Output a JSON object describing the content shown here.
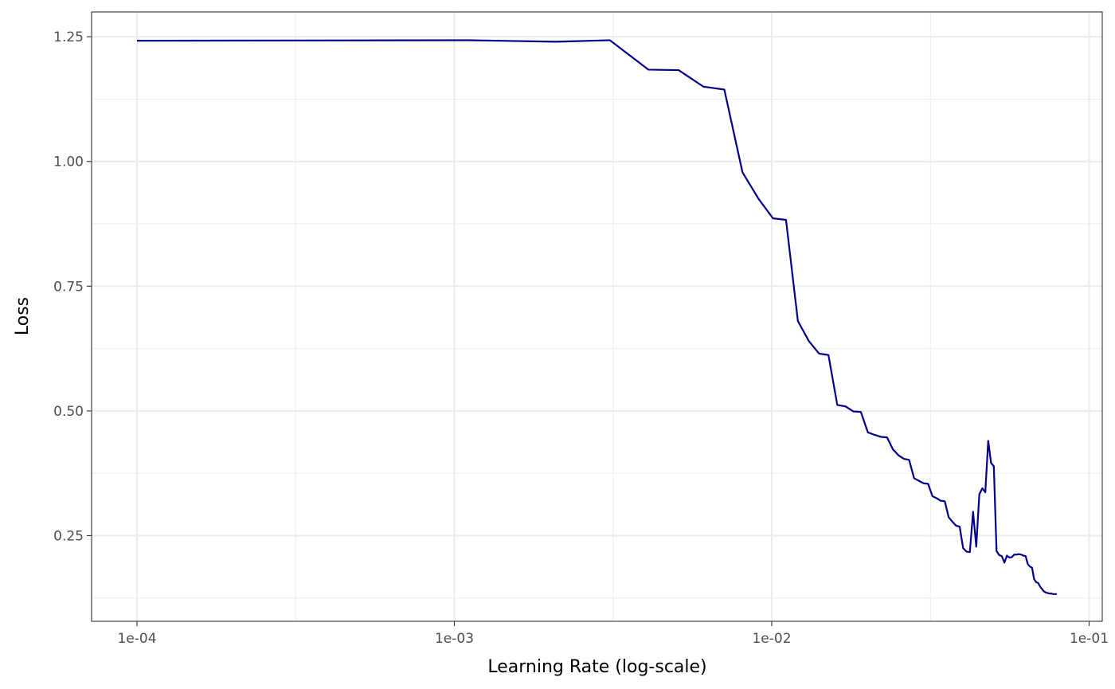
{
  "chart_data": {
    "type": "line",
    "title": "",
    "xlabel": "Learning Rate (log-scale)",
    "ylabel": "Loss",
    "x_scale": "log10",
    "xlim": [
      0.0001,
      0.08
    ],
    "ylim": [
      0.1,
      1.3
    ],
    "x_ticks": [
      {
        "value": 0.0001,
        "label": "1e-04"
      },
      {
        "value": 0.001,
        "label": "1e-03"
      },
      {
        "value": 0.01,
        "label": "1e-02"
      },
      {
        "value": 0.1,
        "label": "1e-01"
      }
    ],
    "y_ticks": [
      {
        "value": 0.25,
        "label": "0.25"
      },
      {
        "value": 0.5,
        "label": "0.50"
      },
      {
        "value": 0.75,
        "label": "0.75"
      },
      {
        "value": 1.0,
        "label": "1.00"
      },
      {
        "value": 1.25,
        "label": "1.25"
      }
    ],
    "grid": true,
    "series": [
      {
        "color": "#00008B",
        "x": [
          0.0001,
          0.0011,
          0.00209,
          0.00309,
          0.00409,
          0.00509,
          0.00609,
          0.00709,
          0.00809,
          0.00909,
          0.01009,
          0.01109,
          0.01209,
          0.01309,
          0.01409,
          0.01509,
          0.01609,
          0.01709,
          0.01809,
          0.01909,
          0.02009,
          0.02109,
          0.02209,
          0.02309,
          0.02409,
          0.02509,
          0.02609,
          0.02709,
          0.02809,
          0.02909,
          0.03009,
          0.03109,
          0.03209,
          0.03309,
          0.03409,
          0.03509,
          0.03609,
          0.03709,
          0.03809,
          0.03909,
          0.04009,
          0.04109,
          0.04209,
          0.04309,
          0.04409,
          0.04509,
          0.04609,
          0.04709,
          0.04809,
          0.04909,
          0.05009,
          0.05109,
          0.05209,
          0.05309,
          0.05409,
          0.05509,
          0.05609,
          0.05709,
          0.05809,
          0.05909,
          0.06009,
          0.06109,
          0.06209,
          0.06309,
          0.06409,
          0.06509,
          0.06609,
          0.06709,
          0.06809,
          0.06909,
          0.07009,
          0.07109,
          0.07209,
          0.07309,
          0.07409,
          0.07509,
          0.07609,
          0.07709,
          0.07809,
          0.07909
        ],
        "y": [
          1.242,
          1.243,
          1.24,
          1.243,
          1.184,
          1.183,
          1.15,
          1.144,
          0.978,
          0.925,
          0.886,
          0.883,
          0.68,
          0.64,
          0.615,
          0.612,
          0.512,
          0.509,
          0.499,
          0.498,
          0.457,
          0.452,
          0.448,
          0.447,
          0.423,
          0.411,
          0.404,
          0.402,
          0.365,
          0.36,
          0.355,
          0.354,
          0.329,
          0.325,
          0.32,
          0.319,
          0.287,
          0.278,
          0.27,
          0.268,
          0.225,
          0.218,
          0.217,
          0.298,
          0.228,
          0.333,
          0.345,
          0.337,
          0.44,
          0.396,
          0.389,
          0.219,
          0.211,
          0.209,
          0.196,
          0.21,
          0.206,
          0.207,
          0.212,
          0.212,
          0.213,
          0.212,
          0.21,
          0.209,
          0.193,
          0.188,
          0.186,
          0.163,
          0.157,
          0.155,
          0.148,
          0.143,
          0.138,
          0.136,
          0.135,
          0.134,
          0.134,
          0.133,
          0.133,
          0.133
        ]
      }
    ]
  }
}
